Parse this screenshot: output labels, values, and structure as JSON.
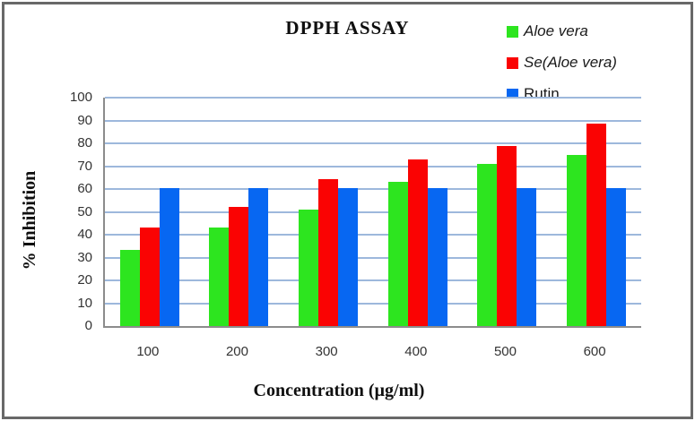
{
  "window": {
    "border_color": "#686868",
    "background_color": "#ffffff"
  },
  "chart_data": {
    "type": "bar",
    "title": "DPPH ASSAY",
    "xlabel": "Concentration (µg/ml)",
    "ylabel": "% Inhibition",
    "categories": [
      "100",
      "200",
      "300",
      "400",
      "500",
      "600"
    ],
    "series": [
      {
        "name": "Aloe vera",
        "italic": true,
        "color": "#2de51f",
        "values": [
          33.5,
          43,
          51,
          63,
          71,
          75
        ]
      },
      {
        "name": "Se(Aloe vera)",
        "italic": true,
        "color": "#fa0303",
        "values": [
          43,
          52,
          64.5,
          73,
          79,
          88.5
        ]
      },
      {
        "name": "Rutin",
        "italic": false,
        "color": "#0767f2",
        "values": [
          60.5,
          60.5,
          60.5,
          60.5,
          60.5,
          60.5
        ]
      }
    ],
    "ylim": [
      0,
      100
    ],
    "ytick_step": 10,
    "grid": true,
    "legend_position": "top-right",
    "gridline_color": "#9db8dc",
    "axis_color": "#8c8c8c"
  }
}
